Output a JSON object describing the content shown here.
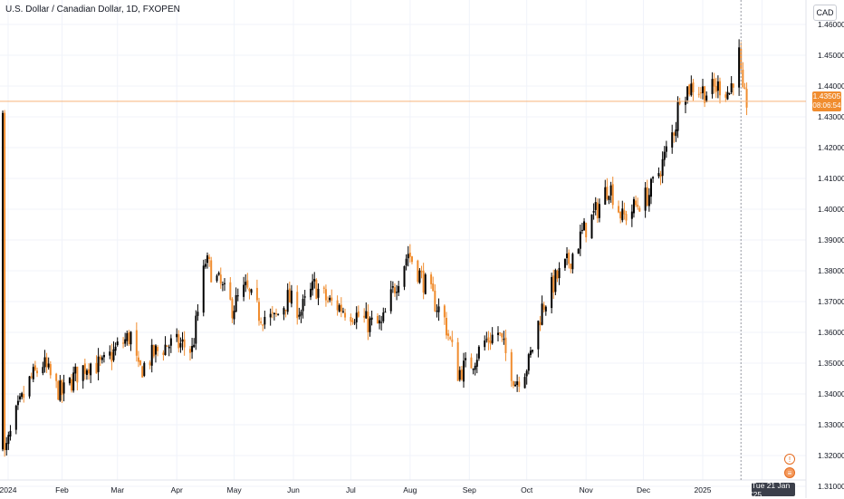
{
  "title": "U.S. Dollar / Canadian Dollar, 1D, FXOPEN",
  "currency_label": "CAD",
  "last_price_tag": {
    "price": "1.43505",
    "countdown": "08:06:54"
  },
  "crosshair_date": "Tue 21 Jan '25",
  "colors": {
    "up": "#000000",
    "down": "#f08c2e",
    "last_price_line": "#f6b37a",
    "grid": "#f0f3fa",
    "axis_text": "#131722"
  },
  "icons": [
    "event-icon",
    "news-icon"
  ],
  "chart_data": {
    "type": "candlestick",
    "ylim": [
      1.305,
      1.465
    ],
    "y_ticks": [
      "1.46000",
      "1.45000",
      "1.44000",
      "1.43000",
      "1.42000",
      "1.41000",
      "1.40000",
      "1.39000",
      "1.38000",
      "1.37000",
      "1.36000",
      "1.35000",
      "1.34000",
      "1.33000",
      "1.32000",
      "1.31000"
    ],
    "x_ticks": [
      "2024",
      "Feb",
      "Mar",
      "Apr",
      "May",
      "Jun",
      "Jul",
      "Aug",
      "Sep",
      "Oct",
      "Nov",
      "Dec",
      "2025",
      "Feb"
    ],
    "last_price": 1.43505,
    "close_path": [
      [
        "2024-01-02",
        1.32
      ],
      [
        "2024-01-08",
        1.333
      ],
      [
        "2024-01-15",
        1.344
      ],
      [
        "2024-01-22",
        1.35
      ],
      [
        "2024-01-29",
        1.342
      ],
      [
        "2024-02-01",
        1.34
      ],
      [
        "2024-02-08",
        1.346
      ],
      [
        "2024-02-15",
        1.35
      ],
      [
        "2024-02-22",
        1.349
      ],
      [
        "2024-03-01",
        1.355
      ],
      [
        "2024-03-08",
        1.359
      ],
      [
        "2024-03-12",
        1.347
      ],
      [
        "2024-03-20",
        1.353
      ],
      [
        "2024-03-27",
        1.356
      ],
      [
        "2024-04-04",
        1.356
      ],
      [
        "2024-04-09",
        1.354
      ],
      [
        "2024-04-16",
        1.383
      ],
      [
        "2024-04-23",
        1.376
      ],
      [
        "2024-04-30",
        1.368
      ],
      [
        "2024-05-07",
        1.374
      ],
      [
        "2024-05-14",
        1.366
      ],
      [
        "2024-05-22",
        1.364
      ],
      [
        "2024-05-29",
        1.371
      ],
      [
        "2024-06-05",
        1.367
      ],
      [
        "2024-06-12",
        1.375
      ],
      [
        "2024-06-19",
        1.37
      ],
      [
        "2024-06-26",
        1.368
      ],
      [
        "2024-07-03",
        1.366
      ],
      [
        "2024-07-10",
        1.363
      ],
      [
        "2024-07-17",
        1.362
      ],
      [
        "2024-07-24",
        1.375
      ],
      [
        "2024-07-31",
        1.386
      ],
      [
        "2024-08-05",
        1.38
      ],
      [
        "2024-08-12",
        1.372
      ],
      [
        "2024-08-19",
        1.364
      ],
      [
        "2024-08-26",
        1.347
      ],
      [
        "2024-09-02",
        1.35
      ],
      [
        "2024-09-09",
        1.357
      ],
      [
        "2024-09-16",
        1.36
      ],
      [
        "2024-09-25",
        1.344
      ],
      [
        "2024-10-02",
        1.35
      ],
      [
        "2024-10-09",
        1.368
      ],
      [
        "2024-10-16",
        1.377
      ],
      [
        "2024-10-23",
        1.383
      ],
      [
        "2024-10-30",
        1.392
      ],
      [
        "2024-11-06",
        1.399
      ],
      [
        "2024-11-13",
        1.408
      ],
      [
        "2024-11-20",
        1.397
      ],
      [
        "2024-11-27",
        1.401
      ],
      [
        "2024-12-04",
        1.405
      ],
      [
        "2024-12-11",
        1.415
      ],
      [
        "2024-12-18",
        1.428
      ],
      [
        "2024-12-20",
        1.438
      ],
      [
        "2024-12-27",
        1.44
      ],
      [
        "2025-01-03",
        1.438
      ],
      [
        "2025-01-10",
        1.44
      ],
      [
        "2025-01-15",
        1.438
      ],
      [
        "2025-01-20",
        1.45
      ],
      [
        "2025-01-22",
        1.436
      ],
      [
        "2025-01-24",
        1.435
      ]
    ]
  }
}
